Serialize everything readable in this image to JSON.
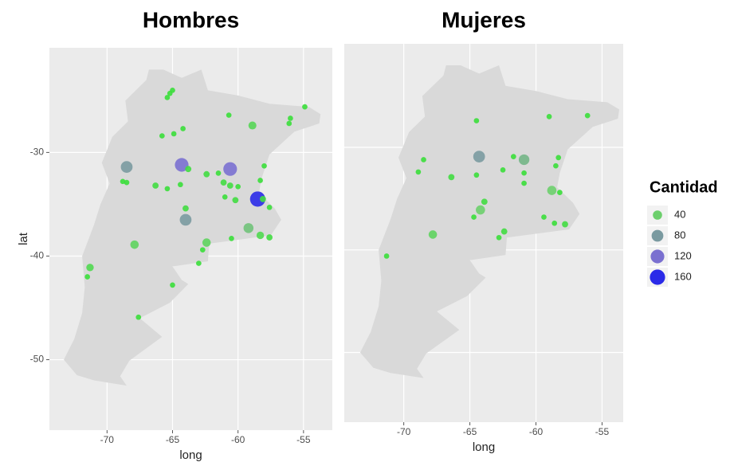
{
  "chart_data": [
    {
      "type": "scatter",
      "title": "Hombres",
      "x_label": "long",
      "y_label": "lat",
      "xlim": [
        -74.4,
        -52.8
      ],
      "ylim": [
        -56.8,
        -19.9
      ],
      "xticks": [
        -70,
        -65,
        -60,
        -55
      ],
      "yticks": [
        -50,
        -40,
        -30
      ],
      "show_ytick_labels": true,
      "grid": true,
      "x": [
        -65.2,
        -65.0,
        -65.4,
        -60.7,
        -56.0,
        -56.1,
        -54.9,
        -58.9,
        -65.8,
        -64.9,
        -64.2,
        -68.5,
        -64.3,
        -60.6,
        -58.5,
        -64.0,
        -59.2,
        -67.9,
        -71.3,
        -68.8,
        -68.5,
        -66.3,
        -65.4,
        -64.4,
        -63.8,
        -62.4,
        -61.5,
        -61.1,
        -60.6,
        -60.0,
        -61.0,
        -60.2,
        -58.0,
        -58.3,
        -58.1,
        -57.6,
        -58.3,
        -57.6,
        -60.5,
        -62.4,
        -62.7,
        -63.0,
        -64.0,
        -71.5,
        -65.0,
        -67.6
      ],
      "y": [
        -24.3,
        -24.0,
        -24.7,
        -26.4,
        -26.7,
        -27.2,
        -25.6,
        -27.4,
        -28.4,
        -28.2,
        -27.7,
        -31.4,
        -31.2,
        -31.6,
        -34.5,
        -36.5,
        -37.3,
        -38.9,
        -41.1,
        -32.8,
        -32.9,
        -33.2,
        -33.5,
        -33.1,
        -31.6,
        -32.1,
        -32.0,
        -32.9,
        -33.2,
        -33.3,
        -34.3,
        -34.6,
        -31.3,
        -32.7,
        -34.5,
        -35.3,
        -38.0,
        -38.2,
        -38.3,
        -38.7,
        -39.4,
        -40.7,
        -35.4,
        -42.0,
        -42.8,
        -45.9
      ],
      "sizes": [
        5,
        5,
        5,
        5,
        5,
        5,
        5,
        25,
        5,
        5,
        5,
        80,
        120,
        120,
        160,
        80,
        50,
        30,
        20,
        5,
        5,
        10,
        5,
        5,
        10,
        10,
        5,
        10,
        10,
        5,
        5,
        10,
        5,
        5,
        10,
        5,
        20,
        10,
        5,
        30,
        5,
        5,
        10,
        5,
        5,
        5
      ]
    },
    {
      "type": "scatter",
      "title": "Mujeres",
      "x_label": "long",
      "xlim": [
        -74.5,
        -53.4
      ],
      "ylim": [
        -56.8,
        -19.9
      ],
      "xticks": [
        -70,
        -65,
        -60,
        -55
      ],
      "yticks": [
        -50,
        -40,
        -30
      ],
      "show_ytick_labels": false,
      "grid": true,
      "x": [
        -64.5,
        -59.0,
        -56.1,
        -68.5,
        -68.9,
        -64.3,
        -61.7,
        -60.9,
        -62.5,
        -64.5,
        -60.9,
        -60.9,
        -58.3,
        -58.5,
        -66.4,
        -58.8,
        -58.2,
        -63.9,
        -64.2,
        -64.7,
        -59.4,
        -58.6,
        -57.8,
        -62.4,
        -62.8,
        -67.8,
        -71.3
      ],
      "y": [
        -27.4,
        -27.0,
        -26.9,
        -31.2,
        -32.4,
        -30.9,
        -30.9,
        -31.2,
        -32.2,
        -32.7,
        -32.5,
        -33.5,
        -31.0,
        -31.8,
        -32.9,
        -34.2,
        -34.4,
        -35.3,
        -36.1,
        -36.8,
        -36.8,
        -37.4,
        -37.5,
        -38.2,
        -38.8,
        -38.5,
        -40.6
      ],
      "sizes": [
        5,
        5,
        5,
        5,
        5,
        80,
        5,
        60,
        5,
        5,
        5,
        5,
        5,
        5,
        10,
        40,
        5,
        10,
        40,
        5,
        5,
        5,
        10,
        10,
        5,
        30,
        5
      ]
    }
  ],
  "legend": {
    "title": "Cantidad",
    "values": [
      40,
      80,
      120,
      160
    ],
    "colors": [
      "#6ccf6c",
      "#7a9aa0",
      "#7a70d0",
      "#2a2ae8"
    ],
    "low_color": "#33e033"
  }
}
